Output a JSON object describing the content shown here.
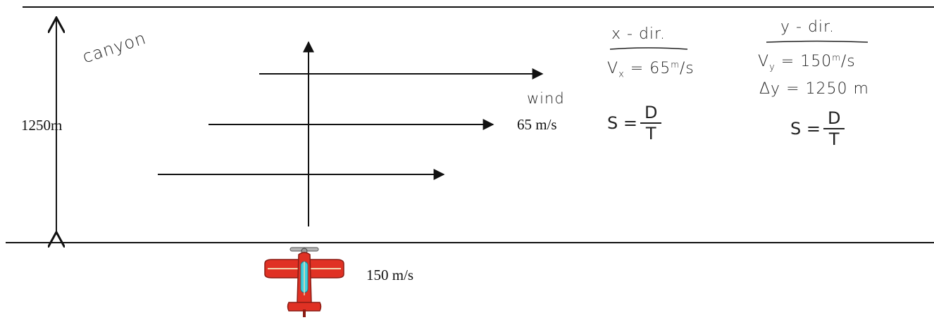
{
  "labels": {
    "canyon": "canyon",
    "height": "1250m",
    "wind_word": "wind",
    "wind_speed": "65 m/s",
    "plane_speed": "150 m/s"
  },
  "x_notes": {
    "heading": "x - dir.",
    "vx_prefix": "V",
    "vx_sub": "x",
    "vx_value": "= 65",
    "vx_unit": "m",
    "vx_unit_rest": "/s",
    "formula_lhs": "S =",
    "formula_num": "D",
    "formula_den": "T"
  },
  "y_notes": {
    "heading": "y - dir.",
    "vy_prefix": "V",
    "vy_sub": "y",
    "vy_value": "= 150",
    "vy_unit": "m",
    "vy_unit_rest": "/s",
    "dy": "Δy = 1250 m",
    "formula_lhs": "S =",
    "formula_num": "D",
    "formula_den": "T"
  },
  "colors": {
    "line": "#111111",
    "plane_body": "#e03124",
    "plane_canopy": "#3fd0e0",
    "plane_trim": "#f2d7b0"
  }
}
